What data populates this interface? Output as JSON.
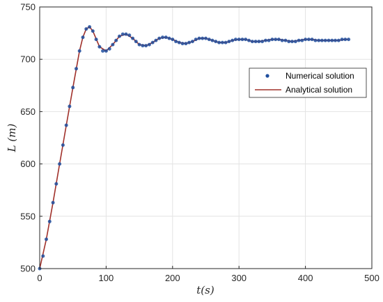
{
  "chart_data": {
    "type": "line",
    "title": "",
    "xlabel": "t(s)",
    "ylabel": "L (m)",
    "xlim": [
      0,
      500
    ],
    "ylim": [
      500,
      750
    ],
    "xticks": [
      "0",
      "100",
      "200",
      "300",
      "400",
      "500"
    ],
    "yticks": [
      "500",
      "550",
      "600",
      "650",
      "700",
      "750"
    ],
    "grid": true,
    "legend_position": "right",
    "series": [
      {
        "name": "Numerical solution",
        "style": "markers",
        "color": "#1f4e9e",
        "x": [
          0,
          5,
          10,
          15,
          20,
          25,
          30,
          35,
          40,
          45,
          50,
          55,
          60,
          65,
          70,
          75,
          80,
          85,
          90,
          95,
          100,
          105,
          110,
          115,
          120,
          125,
          130,
          135,
          140,
          145,
          150,
          155,
          160,
          165,
          170,
          175,
          180,
          185,
          190,
          195,
          200,
          205,
          210,
          215,
          220,
          225,
          230,
          235,
          240,
          245,
          250,
          255,
          260,
          265,
          270,
          275,
          280,
          285,
          290,
          295,
          300,
          305,
          310,
          315,
          320,
          325,
          330,
          335,
          340,
          345,
          350,
          355,
          360,
          365,
          370,
          375,
          380,
          385,
          390,
          395,
          400,
          405,
          410,
          415,
          420,
          425,
          430,
          435,
          440,
          445,
          450,
          455,
          460,
          465
        ],
        "y": [
          500,
          512,
          528,
          545,
          563,
          581,
          600,
          618,
          637,
          655,
          673,
          691,
          708,
          721,
          729,
          731,
          727,
          719,
          712,
          708,
          708,
          710,
          714,
          718,
          722,
          724,
          724,
          723,
          720,
          717,
          714,
          713,
          713,
          714,
          716,
          718,
          720,
          721,
          721,
          720,
          719,
          717,
          716,
          715,
          715,
          716,
          717,
          719,
          720,
          720,
          720,
          719,
          718,
          717,
          716,
          716,
          716,
          717,
          718,
          719,
          719,
          719,
          719,
          718,
          717,
          717,
          717,
          717,
          718,
          718,
          719,
          719,
          719,
          718,
          718,
          717,
          717,
          717,
          718,
          718,
          719,
          719,
          719,
          718,
          718,
          718,
          718,
          718,
          718,
          718,
          718,
          719,
          719,
          719
        ]
      },
      {
        "name": "Analytical solution",
        "style": "line",
        "color": "#a0302a",
        "x": [
          0,
          10,
          20,
          30,
          40,
          50,
          60,
          65,
          70,
          75,
          80,
          90,
          100,
          110,
          120,
          130,
          140,
          150,
          160,
          170,
          180,
          190,
          200,
          210,
          220,
          230,
          240,
          250,
          260,
          270,
          280,
          290,
          300,
          310,
          320,
          330,
          340,
          350,
          360,
          370,
          380,
          390,
          400,
          410,
          420,
          430,
          440,
          450,
          460,
          465
        ],
        "y": [
          500,
          528,
          563,
          600,
          637,
          673,
          708,
          721,
          729,
          731,
          727,
          712,
          708,
          714,
          722,
          724,
          720,
          714,
          713,
          716,
          720,
          721,
          719,
          716,
          715,
          717,
          720,
          720,
          718,
          716,
          716,
          718,
          719,
          719,
          717,
          717,
          718,
          719,
          719,
          718,
          717,
          718,
          719,
          719,
          718,
          718,
          718,
          718,
          719,
          719
        ]
      }
    ]
  }
}
